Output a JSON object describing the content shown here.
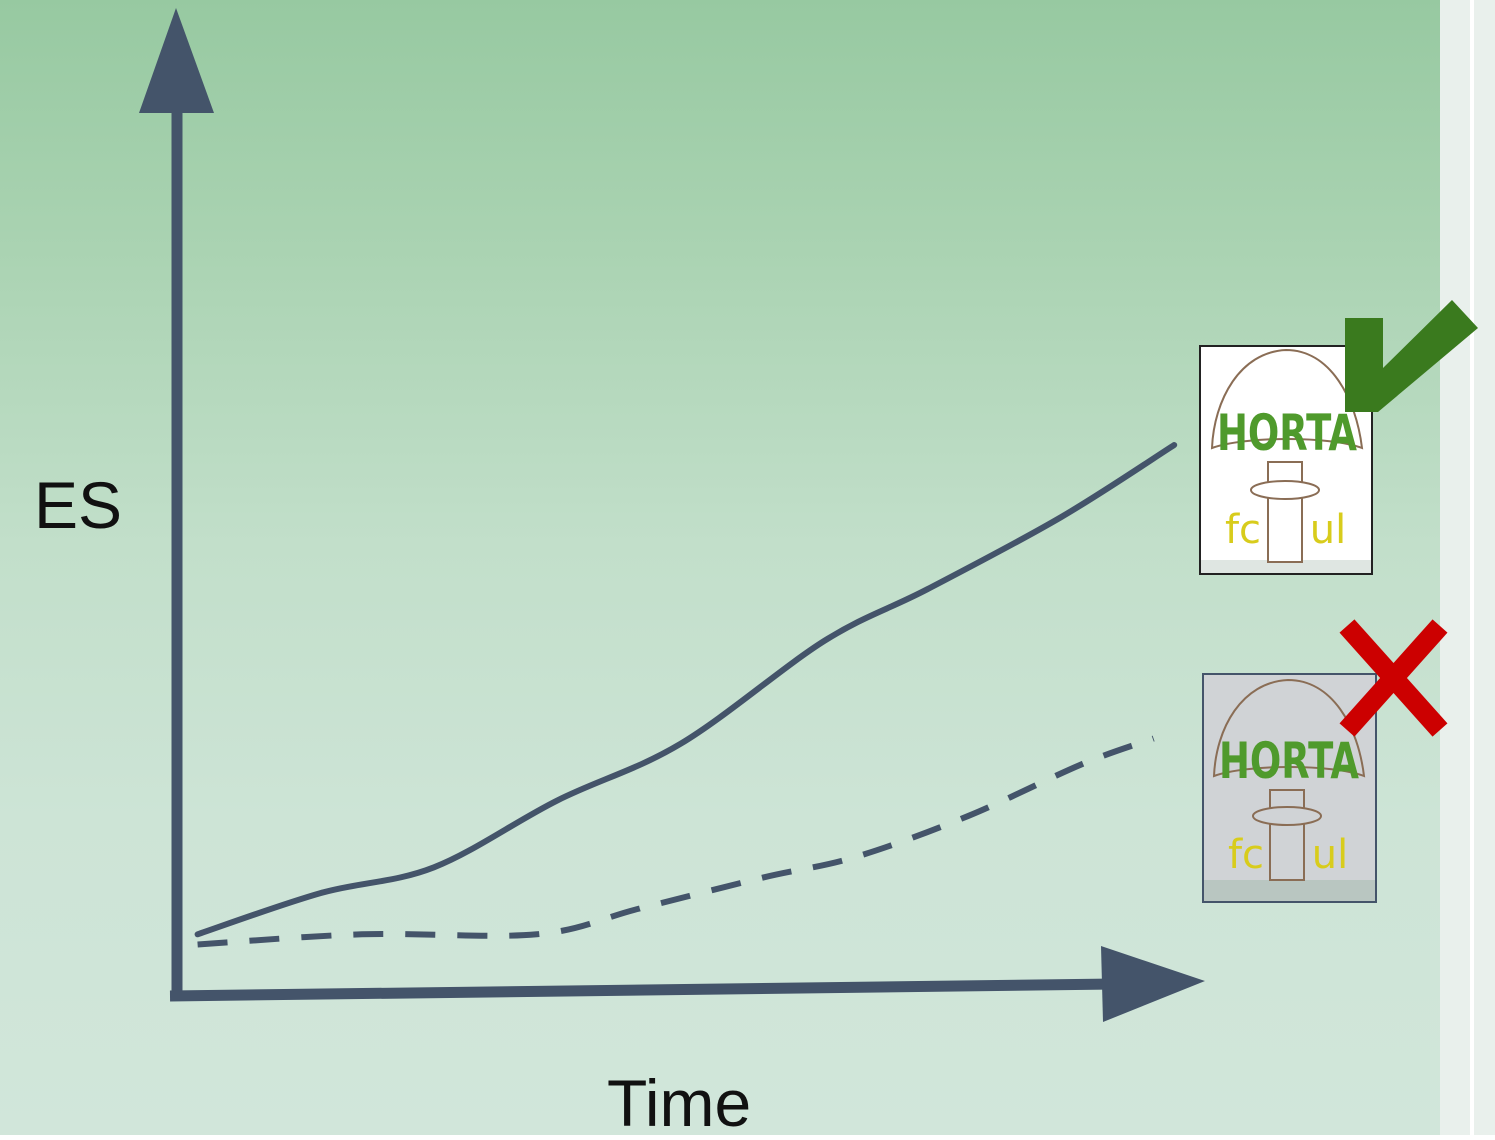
{
  "chart_data": {
    "type": "line",
    "xlabel": "Time",
    "ylabel": "ES",
    "grid": false,
    "series": [
      {
        "style": "solid",
        "end_marker": "check-icon",
        "end_logo": "horta-fcul-logo",
        "values": [
          {
            "x": 0.02,
            "y": 0.05
          },
          {
            "x": 0.14,
            "y": 0.13
          },
          {
            "x": 0.25,
            "y": 0.18
          },
          {
            "x": 0.37,
            "y": 0.31
          },
          {
            "x": 0.49,
            "y": 0.42
          },
          {
            "x": 0.63,
            "y": 0.62
          },
          {
            "x": 0.73,
            "y": 0.72
          },
          {
            "x": 0.86,
            "y": 0.86
          },
          {
            "x": 0.97,
            "y": 1.0
          }
        ]
      },
      {
        "style": "dashed",
        "end_marker": "cross-icon",
        "end_logo": "horta-fcul-logo-faded",
        "values": [
          {
            "x": 0.02,
            "y": 0.03
          },
          {
            "x": 0.18,
            "y": 0.05
          },
          {
            "x": 0.35,
            "y": 0.05
          },
          {
            "x": 0.45,
            "y": 0.1
          },
          {
            "x": 0.57,
            "y": 0.16
          },
          {
            "x": 0.66,
            "y": 0.2
          },
          {
            "x": 0.77,
            "y": 0.28
          },
          {
            "x": 0.88,
            "y": 0.38
          },
          {
            "x": 0.95,
            "y": 0.43
          }
        ]
      }
    ]
  },
  "logos": {
    "top": {
      "line1": "HORTA",
      "line2_left": "fc",
      "line2_right": "ul"
    },
    "bottom": {
      "line1": "HORTA",
      "line2_left": "fc",
      "line2_right": "ul"
    }
  },
  "colors": {
    "axis": "#44546a",
    "check": "#3a7a1e",
    "cross": "#cc0000",
    "logo_green": "#4f9a2c",
    "logo_yellow": "#d8cc1c"
  }
}
